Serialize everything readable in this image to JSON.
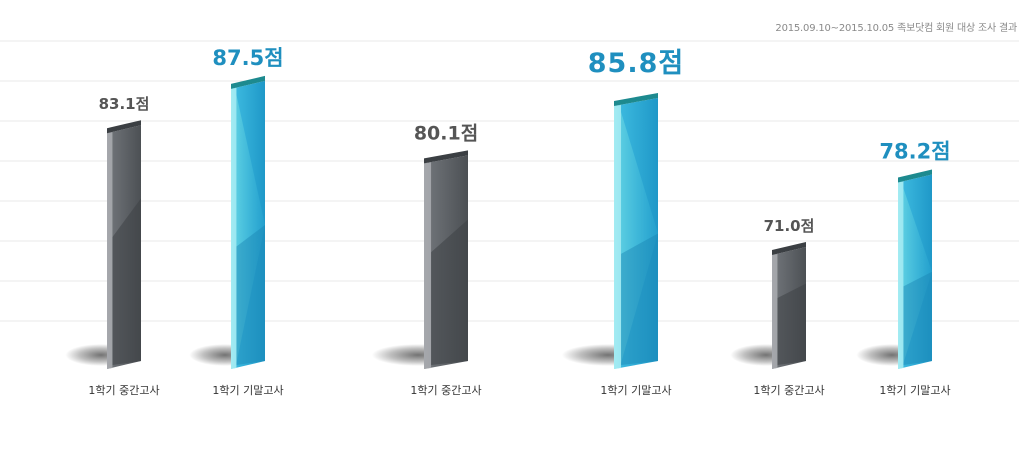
{
  "source_note": "2015.09.10~2015.10.05 족보닷컴 회원 대상 조사 결과",
  "colors": {
    "gray_face": "#55595d",
    "gray_side": "#8d9094",
    "gray_top": "#3b3f43",
    "blue_face": "#27a3cf",
    "blue_light": "#6fd6e6",
    "blue_top": "#1d8a8f",
    "gray_label": "#555555",
    "blue_label": "#1f8fbf",
    "category_text": "#333333",
    "gridline": "#e8e8e8"
  },
  "chart_data": {
    "type": "bar",
    "title": "",
    "xlabel": "",
    "ylabel": "",
    "grid": true,
    "ylim": [
      60,
      90
    ],
    "categories": [
      "1학기 중간고사",
      "1학기 기말고사",
      "1학기 중간고사",
      "1학기 기말고사",
      "1학기 중간고사",
      "1학기 기말고사"
    ],
    "values": [
      83.1,
      87.5,
      80.1,
      85.8,
      71.0,
      78.2
    ],
    "value_labels": [
      "83.1점",
      "87.5점",
      "80.1점",
      "85.8점",
      "71.0점",
      "78.2점"
    ],
    "bar_styles": [
      "gray",
      "blue",
      "gray",
      "blue",
      "gray",
      "blue"
    ]
  }
}
